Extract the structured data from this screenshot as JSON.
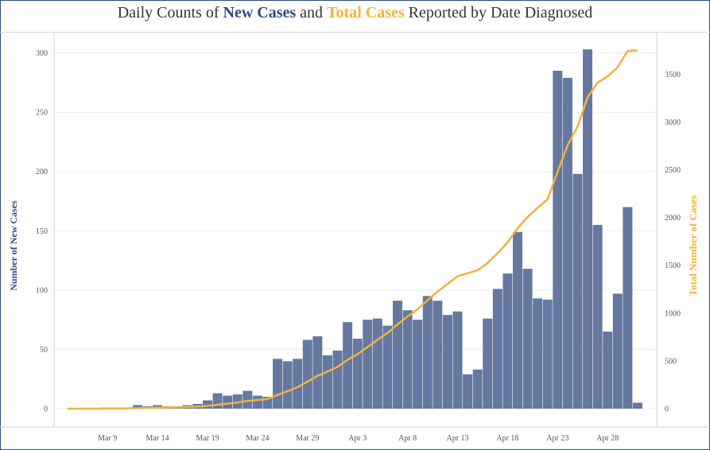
{
  "title": {
    "prefix": "Daily Counts of ",
    "highlight_new": "New Cases",
    "middle": " and ",
    "highlight_total": "Total Cases",
    "suffix": " Reported by Date Diagnosed"
  },
  "colors": {
    "bars": "#6478a0",
    "line": "#f2b23a",
    "new_cases_text": "#2e4a7d",
    "total_cases_text": "#f2b23a",
    "grid": "#ececec"
  },
  "chart_data": {
    "type": "bar",
    "x_start_date": "Mar 5",
    "series": [
      {
        "name": "New Cases",
        "axis": "left",
        "values": [
          0,
          0,
          0,
          0,
          1,
          1,
          1,
          3,
          2,
          3,
          2,
          2,
          3,
          4,
          7,
          13,
          11,
          12,
          15,
          11,
          10,
          42,
          40,
          42,
          58,
          61,
          45,
          49,
          73,
          59,
          75,
          76,
          70,
          91,
          83,
          75,
          95,
          91,
          79,
          82,
          29,
          33,
          76,
          101,
          114,
          149,
          118,
          93,
          92,
          285,
          279,
          198,
          303,
          155,
          65,
          97,
          170,
          5
        ]
      },
      {
        "name": "Total Cases",
        "axis": "right",
        "values": [
          0,
          0,
          0,
          0,
          1,
          2,
          3,
          6,
          8,
          11,
          13,
          15,
          18,
          22,
          29,
          42,
          53,
          65,
          80,
          91,
          101,
          143,
          183,
          225,
          283,
          344,
          389,
          438,
          511,
          570,
          645,
          721,
          791,
          882,
          965,
          1040,
          1135,
          1226,
          1305,
          1387,
          1416,
          1449,
          1525,
          1626,
          1740,
          1889,
          2007,
          2100,
          2192,
          2477,
          2756,
          2954,
          3257,
          3412,
          3477,
          3574,
          3744,
          3749
        ]
      }
    ],
    "x_tick_labels": [
      "Mar 9",
      "Mar 14",
      "Mar 19",
      "Mar 24",
      "Mar 29",
      "Apr 3",
      "Apr 8",
      "Apr 13",
      "Apr 18",
      "Apr 23",
      "Apr 28"
    ],
    "x_tick_offsets": [
      4,
      9,
      14,
      19,
      24,
      29,
      34,
      39,
      44,
      49,
      54
    ],
    "y_left": {
      "label": "Number of New Cases",
      "ticks": [
        "0",
        "50",
        "100",
        "150",
        "200",
        "250",
        "300"
      ],
      "min": 0,
      "max": 320
    },
    "y_right": {
      "label": "Total Number of Cases",
      "ticks": [
        "0",
        "500",
        "1000",
        "1500",
        "2000",
        "2500",
        "3000",
        "3500"
      ],
      "min": 0,
      "max": 4000
    },
    "grid": true
  }
}
